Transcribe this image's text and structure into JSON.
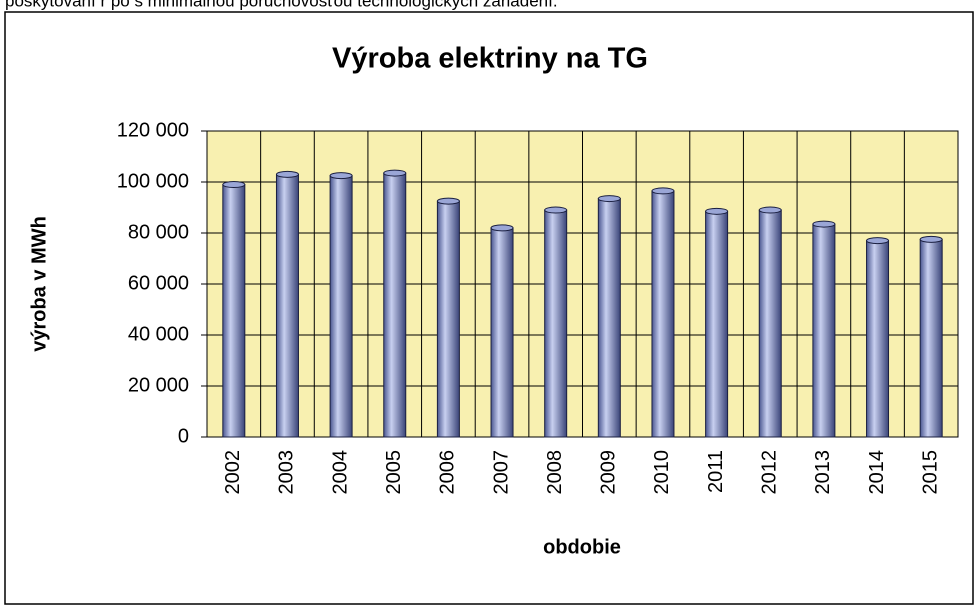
{
  "page_text": "poskytovaní r po s minimálnou poruchovosťou technologických zariadení.",
  "chart_data": {
    "type": "bar",
    "title": "Výroba elektriny na TG",
    "x_label": "obdobie",
    "y_label": "výroba v MWh",
    "categories": [
      "2002",
      "2003",
      "2004",
      "2005",
      "2006",
      "2007",
      "2008",
      "2009",
      "2010",
      "2011",
      "2012",
      "2013",
      "2014",
      "2015"
    ],
    "values": [
      99000,
      103000,
      102500,
      103500,
      92500,
      82000,
      89000,
      93500,
      96500,
      88500,
      89000,
      83500,
      77000,
      77500
    ],
    "color": "#9aa6d6",
    "ylim": [
      0,
      120000
    ],
    "yticks": [
      0,
      {
        "value": 20000,
        "label": "20 000"
      },
      {
        "value": 40000,
        "label": "40 000"
      },
      {
        "value": 60000,
        "label": "60 000"
      },
      {
        "value": 80000,
        "label": "80 000"
      },
      {
        "value": 100000,
        "label": "100 000"
      },
      {
        "value": 120000,
        "label": "120 000"
      }
    ],
    "grid": true
  }
}
